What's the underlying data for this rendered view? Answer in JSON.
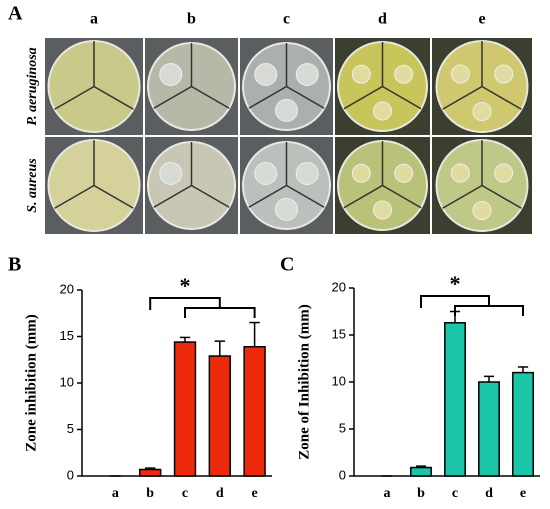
{
  "panel_a": {
    "label": "A",
    "columns": [
      "a",
      "b",
      "c",
      "d",
      "e"
    ],
    "rows": [
      "P. aeruginosa",
      "S. aureus"
    ]
  },
  "chart_data": [
    {
      "type": "bar",
      "panel_label": "B",
      "ylabel": "Zone inhibition (mm)",
      "categories": [
        "a",
        "b",
        "c",
        "d",
        "e"
      ],
      "values": [
        0,
        0.7,
        14.4,
        12.9,
        13.9
      ],
      "errors": [
        0,
        0.15,
        0.5,
        1.6,
        2.6
      ],
      "color": "#ee2a0c",
      "ylim": [
        0,
        20
      ],
      "yticks": [
        0,
        5,
        10,
        15,
        20
      ],
      "annotation": "*"
    },
    {
      "type": "bar",
      "panel_label": "C",
      "ylabel": "Zone of Inhibition (mm)",
      "categories": [
        "a",
        "b",
        "c",
        "d",
        "e"
      ],
      "values": [
        0,
        0.9,
        16.3,
        10.0,
        11.0
      ],
      "errors": [
        0,
        0.15,
        1.2,
        0.6,
        0.6
      ],
      "color": "#1cc4a8",
      "ylim": [
        0,
        20
      ],
      "yticks": [
        0,
        5,
        10,
        15,
        20
      ],
      "annotation": "*"
    }
  ]
}
